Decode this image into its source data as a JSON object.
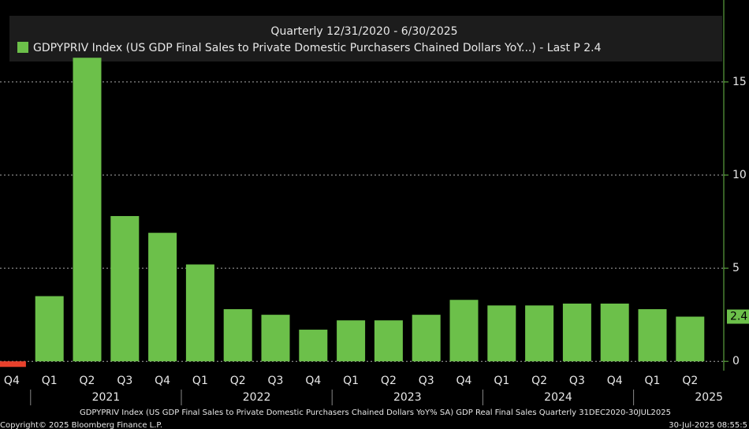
{
  "chart_data": {
    "type": "bar",
    "title": "Quarterly 12/31/2020 - 6/30/2025",
    "series_name": "GDPYPRIV Index (US GDP Final Sales to Private Domestic Purchasers Chained Dollars YoY...) - Last P 2.4",
    "categories": [
      "Q4",
      "Q1",
      "Q2",
      "Q3",
      "Q4",
      "Q1",
      "Q2",
      "Q3",
      "Q4",
      "Q1",
      "Q2",
      "Q3",
      "Q4",
      "Q1",
      "Q2",
      "Q3",
      "Q4",
      "Q1",
      "Q2"
    ],
    "year_groups": [
      "2021",
      "2022",
      "2023",
      "2024",
      "2025"
    ],
    "values": [
      -0.3,
      3.5,
      16.3,
      7.8,
      6.9,
      5.2,
      2.8,
      2.5,
      1.7,
      2.2,
      2.2,
      2.5,
      3.3,
      3.0,
      3.0,
      3.1,
      3.1,
      2.8,
      2.4
    ],
    "color": "#6cc04a",
    "negative_color": "#e8412c",
    "ylim": [
      -0.5,
      19.4
    ],
    "yticks": [
      0,
      5,
      10,
      15
    ],
    "grid": true,
    "footer": [
      "GDPYPRIV Index (US GDP Final Sales to Private Domestic Purchasers Chained Dollars YoY% SA) GDP Real Final Sales  Quarterly 31DEC2020-30JUL2025",
      "Copyright© 2025 Bloomberg Finance L.P.",
      "30-Jul-2025 08:55:5"
    ]
  }
}
